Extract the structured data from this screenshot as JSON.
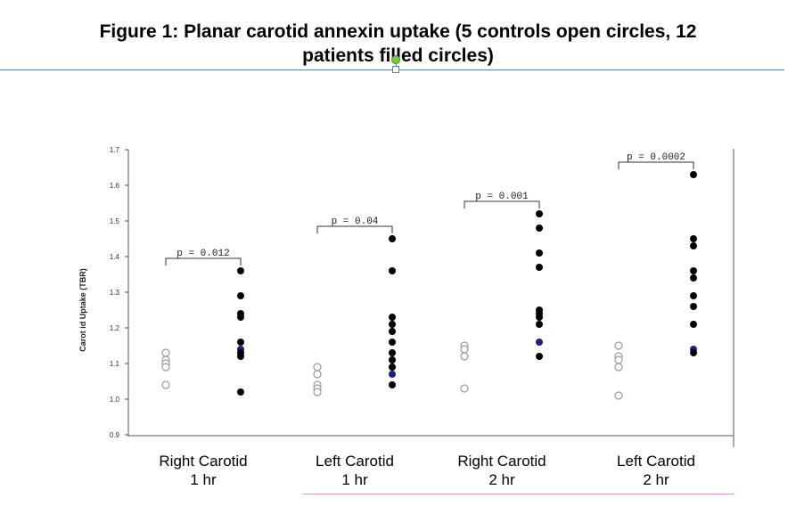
{
  "title": {
    "line1": "Figure 1: Planar carotid annexin uptake  (5 controls open circles, 12",
    "line2": "patients filled circles)"
  },
  "chart_data": {
    "type": "scatter",
    "ylabel": "Carot id  Uptake (TBR)",
    "ylim": [
      0.9,
      1.7
    ],
    "yticks": [
      "0.9",
      "1.0",
      "1.1",
      "1.2",
      "1.3",
      "1.4",
      "1.5",
      "1.6",
      "1.7"
    ],
    "groups": [
      {
        "label_line1": "Right Carotid",
        "label_line2": "1 hr",
        "pvalue": "p = 0.012",
        "controls": [
          1.13,
          1.11,
          1.1,
          1.09,
          1.04
        ],
        "patients": [
          1.36,
          1.29,
          1.24,
          1.23,
          1.16,
          1.14,
          1.13,
          1.12,
          1.02
        ],
        "highlighted": [
          1.14
        ]
      },
      {
        "label_line1": "Left Carotid",
        "label_line2": "1 hr",
        "pvalue": "p = 0.04",
        "controls": [
          1.09,
          1.07,
          1.04,
          1.03,
          1.02
        ],
        "patients": [
          1.45,
          1.36,
          1.23,
          1.21,
          1.19,
          1.16,
          1.13,
          1.11,
          1.09,
          1.07,
          1.04
        ],
        "highlighted": [
          1.07
        ]
      },
      {
        "label_line1": "Right Carotid",
        "label_line2": "2 hr",
        "pvalue": "p = 0.001",
        "controls": [
          1.15,
          1.14,
          1.12,
          1.03
        ],
        "patients": [
          1.52,
          1.48,
          1.41,
          1.37,
          1.25,
          1.24,
          1.23,
          1.21,
          1.16,
          1.12
        ],
        "highlighted": [
          1.16
        ]
      },
      {
        "label_line1": "Left Carotid",
        "label_line2": "2 hr",
        "pvalue": "p = 0.0002",
        "controls": [
          1.15,
          1.12,
          1.11,
          1.09,
          1.01
        ],
        "patients": [
          1.63,
          1.45,
          1.43,
          1.36,
          1.34,
          1.29,
          1.26,
          1.21,
          1.14,
          1.13
        ],
        "highlighted": [
          1.14
        ]
      }
    ],
    "marker_colors": {
      "control": "#9a9a9a",
      "patient": "#000000",
      "highlight": "#1a237e"
    }
  }
}
